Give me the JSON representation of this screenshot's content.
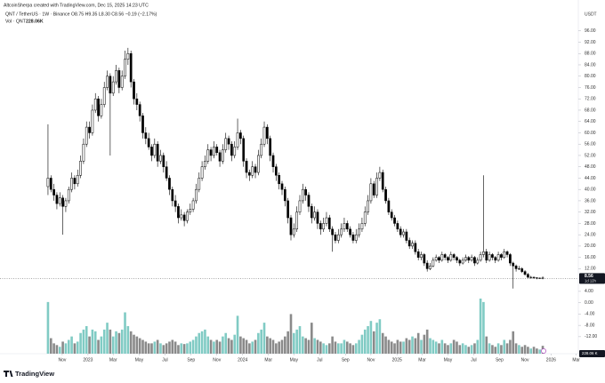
{
  "chart_data": {
    "type": "candlestick",
    "attribution": "AltcoinSherpa created with TradingView.com, Dec 15, 2025 14:23 UTC",
    "symbol": "QNT / TetherUS · 1W · Binance",
    "ohlc_legend": "O8.75  H9.35  L8.30  C8.56  −0.19 (−2.17%)",
    "volume_legend": "Vol · QNT",
    "volume_legend_value": "228.06K",
    "currency": "USDT",
    "last_price_label": "8.56",
    "countdown": "1d 12h",
    "volume_price_label": "228.06 K",
    "logo": "TradingView",
    "up_color": "#ffffff",
    "down_color": "#000000",
    "up_volume_color": "#80cbc4",
    "down_volume_color": "#8a8a8a",
    "xlim": [
      -16.2,
      179
    ],
    "xticks": [
      {
        "value": 4.8,
        "label": "Nov"
      },
      {
        "value": 13.5,
        "label": "2023"
      },
      {
        "value": 22,
        "label": "Mar"
      },
      {
        "value": 30.8,
        "label": "May"
      },
      {
        "value": 39.5,
        "label": "Jul"
      },
      {
        "value": 48.3,
        "label": "Sep"
      },
      {
        "value": 57,
        "label": "Nov"
      },
      {
        "value": 65.7,
        "label": "2024"
      },
      {
        "value": 74.4,
        "label": "Mar"
      },
      {
        "value": 83,
        "label": "May"
      },
      {
        "value": 91.7,
        "label": "Jul"
      },
      {
        "value": 100.4,
        "label": "Sep"
      },
      {
        "value": 109,
        "label": "Nov"
      },
      {
        "value": 117.8,
        "label": "2025"
      },
      {
        "value": 126.3,
        "label": "Mar"
      },
      {
        "value": 135,
        "label": "May"
      },
      {
        "value": 143.7,
        "label": "Jul"
      },
      {
        "value": 152.4,
        "label": "Sep"
      },
      {
        "value": 161,
        "label": "Nov"
      },
      {
        "value": 169.8,
        "label": "2026"
      },
      {
        "value": 178.3,
        "label": "Mar"
      }
    ],
    "ylim": [
      -18,
      100
    ],
    "yticks": [
      {
        "value": -12,
        "label": "-12.00"
      },
      {
        "value": -8,
        "label": "-8.00"
      },
      {
        "value": -4,
        "label": "-4.00"
      },
      {
        "value": 0,
        "label": "0.00"
      },
      {
        "value": 4,
        "label": "4.00"
      },
      {
        "value": 12,
        "label": "12.00"
      },
      {
        "value": 16,
        "label": "16.00"
      },
      {
        "value": 20,
        "label": "20.00"
      },
      {
        "value": 24,
        "label": "24.00"
      },
      {
        "value": 28,
        "label": "28.00"
      },
      {
        "value": 32,
        "label": "32.00"
      },
      {
        "value": 36,
        "label": "36.00"
      },
      {
        "value": 40,
        "label": "40.00"
      },
      {
        "value": 44,
        "label": "44.00"
      },
      {
        "value": 48,
        "label": "48.00"
      },
      {
        "value": 52,
        "label": "52.00"
      },
      {
        "value": 56,
        "label": "56.00"
      },
      {
        "value": 60,
        "label": "60.00"
      },
      {
        "value": 64,
        "label": "64.00"
      },
      {
        "value": 68,
        "label": "68.00"
      },
      {
        "value": 72,
        "label": "72.00"
      },
      {
        "value": 76,
        "label": "76.00"
      },
      {
        "value": 80,
        "label": "80.00"
      },
      {
        "value": 84,
        "label": "84.00"
      },
      {
        "value": 88,
        "label": "88.00"
      },
      {
        "value": 92,
        "label": "92.00"
      },
      {
        "value": 96,
        "label": "96.00"
      }
    ],
    "vlim": [
      0,
      1600
    ],
    "candles": [
      [
        41,
        63,
        38,
        44
      ],
      [
        44,
        45,
        39,
        40
      ],
      [
        40,
        42,
        36,
        38
      ],
      [
        38,
        39,
        33,
        35
      ],
      [
        35,
        39,
        34,
        37
      ],
      [
        37,
        38,
        24,
        34
      ],
      [
        34,
        37,
        32,
        36
      ],
      [
        36,
        41,
        35,
        40
      ],
      [
        40,
        46,
        39,
        44
      ],
      [
        44,
        45,
        40,
        42
      ],
      [
        42,
        47,
        41,
        45
      ],
      [
        45,
        52,
        44,
        50
      ],
      [
        50,
        58,
        49,
        56
      ],
      [
        56,
        64,
        55,
        62
      ],
      [
        62,
        64,
        58,
        60
      ],
      [
        60,
        70,
        59,
        68
      ],
      [
        68,
        74,
        67,
        72
      ],
      [
        72,
        73,
        64,
        66
      ],
      [
        66,
        72,
        65,
        70
      ],
      [
        70,
        78,
        69,
        76
      ],
      [
        76,
        82,
        75,
        80
      ],
      [
        80,
        81,
        52,
        74
      ],
      [
        74,
        80,
        73,
        78
      ],
      [
        78,
        84,
        77,
        82
      ],
      [
        82,
        83,
        74,
        76
      ],
      [
        76,
        82,
        75,
        80
      ],
      [
        80,
        89,
        79,
        86
      ],
      [
        86,
        90,
        84,
        88
      ],
      [
        88,
        89,
        76,
        78
      ],
      [
        78,
        79,
        70,
        72
      ],
      [
        72,
        74,
        68,
        70
      ],
      [
        70,
        71,
        64,
        66
      ],
      [
        66,
        67,
        58,
        60
      ],
      [
        60,
        62,
        56,
        58
      ],
      [
        58,
        60,
        54,
        55
      ],
      [
        55,
        56,
        50,
        52
      ],
      [
        52,
        58,
        51,
        56
      ],
      [
        56,
        57,
        48,
        50
      ],
      [
        50,
        54,
        49,
        52
      ],
      [
        52,
        53,
        46,
        48
      ],
      [
        48,
        50,
        43,
        44
      ],
      [
        44,
        45,
        38,
        40
      ],
      [
        40,
        41,
        34,
        36
      ],
      [
        36,
        38,
        32,
        34
      ],
      [
        34,
        35,
        28,
        30
      ],
      [
        30,
        33,
        29,
        31
      ],
      [
        31,
        32,
        27,
        29
      ],
      [
        29,
        33,
        28,
        32
      ],
      [
        32,
        35,
        31,
        33
      ],
      [
        33,
        37,
        32,
        36
      ],
      [
        36,
        42,
        35,
        40
      ],
      [
        40,
        46,
        39,
        44
      ],
      [
        44,
        50,
        43,
        48
      ],
      [
        48,
        52,
        47,
        50
      ],
      [
        50,
        56,
        49,
        54
      ],
      [
        54,
        55,
        50,
        52
      ],
      [
        52,
        57,
        51,
        55
      ],
      [
        55,
        56,
        52,
        53
      ],
      [
        53,
        54,
        48,
        50
      ],
      [
        50,
        56,
        49,
        54
      ],
      [
        54,
        60,
        53,
        58
      ],
      [
        58,
        59,
        54,
        56
      ],
      [
        56,
        57,
        50,
        52
      ],
      [
        52,
        57,
        51,
        55
      ],
      [
        55,
        65,
        54,
        60
      ],
      [
        60,
        61,
        56,
        58
      ],
      [
        58,
        59,
        48,
        50
      ],
      [
        50,
        51,
        44,
        46
      ],
      [
        46,
        47,
        43,
        45
      ],
      [
        45,
        50,
        44,
        48
      ],
      [
        48,
        49,
        44,
        46
      ],
      [
        46,
        54,
        45,
        52
      ],
      [
        52,
        58,
        51,
        56
      ],
      [
        56,
        64,
        55,
        62
      ],
      [
        62,
        63,
        56,
        58
      ],
      [
        58,
        59,
        50,
        52
      ],
      [
        52,
        53,
        46,
        48
      ],
      [
        48,
        49,
        43,
        45
      ],
      [
        45,
        46,
        40,
        42
      ],
      [
        42,
        43,
        38,
        40
      ],
      [
        40,
        41,
        34,
        36
      ],
      [
        36,
        37,
        28,
        30
      ],
      [
        30,
        31,
        22,
        24
      ],
      [
        24,
        28,
        23,
        26
      ],
      [
        26,
        34,
        25,
        32
      ],
      [
        32,
        38,
        31,
        36
      ],
      [
        36,
        42,
        35,
        40
      ],
      [
        40,
        41,
        36,
        38
      ],
      [
        38,
        39,
        32,
        34
      ],
      [
        34,
        35,
        28,
        30
      ],
      [
        30,
        34,
        29,
        32
      ],
      [
        32,
        33,
        26,
        28
      ],
      [
        28,
        29,
        24,
        26
      ],
      [
        26,
        30,
        25,
        28
      ],
      [
        28,
        32,
        27,
        30
      ],
      [
        30,
        31,
        25,
        26
      ],
      [
        26,
        27,
        18,
        24
      ],
      [
        24,
        25,
        21,
        22
      ],
      [
        22,
        26,
        21,
        24
      ],
      [
        24,
        28,
        23,
        26
      ],
      [
        26,
        30,
        25,
        28
      ],
      [
        28,
        29,
        25,
        26
      ],
      [
        26,
        27,
        23,
        24
      ],
      [
        24,
        25,
        21,
        22
      ],
      [
        22,
        26,
        21,
        24
      ],
      [
        24,
        28,
        23,
        26
      ],
      [
        26,
        30,
        25,
        28
      ],
      [
        28,
        34,
        27,
        32
      ],
      [
        32,
        38,
        31,
        36
      ],
      [
        36,
        44,
        35,
        42
      ],
      [
        42,
        43,
        37,
        38
      ],
      [
        38,
        46,
        37,
        44
      ],
      [
        44,
        48,
        43,
        46
      ],
      [
        46,
        47,
        39,
        40
      ],
      [
        40,
        41,
        35,
        36
      ],
      [
        36,
        37,
        31,
        32
      ],
      [
        32,
        33,
        29,
        30
      ],
      [
        30,
        31,
        27,
        28
      ],
      [
        28,
        29,
        25,
        26
      ],
      [
        26,
        27,
        23,
        24
      ],
      [
        24,
        26,
        23,
        25
      ],
      [
        25,
        26,
        21,
        22
      ],
      [
        22,
        23,
        19,
        20
      ],
      [
        20,
        22,
        19,
        21
      ],
      [
        21,
        22,
        17,
        18
      ],
      [
        18,
        19,
        15,
        16
      ],
      [
        16,
        18,
        15,
        17
      ],
      [
        17,
        17.5,
        13,
        14
      ],
      [
        14,
        15,
        11,
        12
      ],
      [
        12,
        14,
        11.5,
        13
      ],
      [
        13,
        16,
        12.5,
        15
      ],
      [
        15,
        17,
        14.5,
        16
      ],
      [
        16,
        16.5,
        14,
        15
      ],
      [
        15,
        18,
        14.5,
        17
      ],
      [
        17,
        17.5,
        15,
        16
      ],
      [
        16,
        16.5,
        14,
        15
      ],
      [
        15,
        18,
        14.5,
        17
      ],
      [
        17,
        17.5,
        15,
        16
      ],
      [
        16,
        16.5,
        14,
        15
      ],
      [
        15,
        15.5,
        13,
        14
      ],
      [
        14,
        16,
        13.5,
        15
      ],
      [
        15,
        17,
        14.5,
        16
      ],
      [
        16,
        16.5,
        14,
        15
      ],
      [
        15,
        17,
        14.5,
        16
      ],
      [
        16,
        16.5,
        13,
        14
      ],
      [
        14,
        16,
        13.5,
        15
      ],
      [
        15,
        18,
        14.5,
        17
      ],
      [
        17,
        45,
        16,
        18
      ],
      [
        18,
        19,
        14,
        15
      ],
      [
        15,
        18,
        14.5,
        17
      ],
      [
        17,
        17.5,
        15,
        16
      ],
      [
        16,
        16.5,
        14,
        15
      ],
      [
        15,
        18,
        14.5,
        17
      ],
      [
        17,
        17.5,
        15,
        16
      ],
      [
        16,
        19,
        15.5,
        18
      ],
      [
        18,
        18.5,
        16,
        17
      ],
      [
        17,
        17.5,
        13,
        14
      ],
      [
        14,
        14.5,
        5,
        13
      ],
      [
        13,
        13.5,
        11,
        12
      ],
      [
        12,
        13,
        11.5,
        12
      ],
      [
        12,
        12.5,
        10.5,
        11
      ],
      [
        11,
        11.5,
        9.5,
        10
      ],
      [
        10,
        10.5,
        8.5,
        9
      ],
      [
        9,
        9.5,
        8.5,
        9
      ],
      [
        9,
        9.2,
        8.4,
        8.8
      ],
      [
        8.8,
        9,
        8.3,
        8.6
      ],
      [
        8.6,
        8.9,
        8.4,
        8.7
      ],
      [
        8.75,
        9.35,
        8.3,
        8.56
      ]
    ],
    "volume": [
      1500,
      450,
      300,
      250,
      200,
      350,
      300,
      400,
      500,
      300,
      350,
      600,
      700,
      800,
      500,
      700,
      650,
      400,
      500,
      700,
      900,
      700,
      500,
      650,
      600,
      700,
      1200,
      800,
      650,
      550,
      500,
      450,
      400,
      350,
      300,
      300,
      350,
      400,
      300,
      250,
      300,
      350,
      400,
      350,
      250,
      300,
      280,
      300,
      350,
      400,
      500,
      600,
      650,
      700,
      500,
      400,
      350,
      400,
      350,
      500,
      600,
      450,
      400,
      550,
      1100,
      500,
      450,
      400,
      300,
      350,
      400,
      600,
      700,
      900,
      500,
      450,
      400,
      300,
      350,
      400,
      500,
      650,
      1150,
      600,
      700,
      800,
      500,
      450,
      400,
      900,
      450,
      400,
      350,
      300,
      250,
      300,
      500,
      350,
      300,
      300,
      400,
      350,
      300,
      250,
      300,
      400,
      550,
      700,
      800,
      950,
      650,
      900,
      1000,
      600,
      500,
      400,
      350,
      300,
      400,
      350,
      350,
      450,
      400,
      500,
      450,
      600,
      400,
      550,
      700,
      450,
      400,
      350,
      300,
      400,
      300,
      250,
      300,
      400,
      350,
      250,
      300,
      250,
      200,
      250,
      300,
      400,
      1600,
      1500,
      500,
      300,
      250,
      200,
      300,
      250,
      400,
      300,
      400,
      650,
      300,
      250,
      200,
      250,
      200,
      150,
      200,
      150,
      120,
      228.06
    ]
  }
}
